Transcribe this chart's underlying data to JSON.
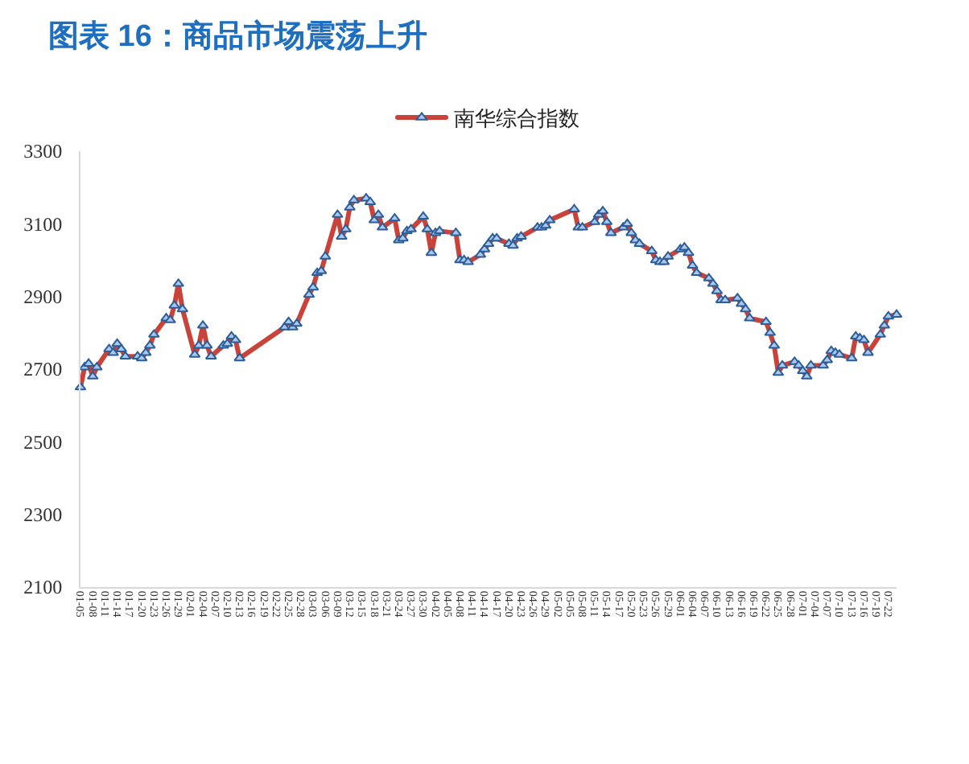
{
  "chart_data": {
    "type": "line",
    "title": "图表 16：商品市场震荡上升",
    "x": [
      "--01-05",
      "--01-06",
      "--01-07",
      "--01-08",
      "--01-09",
      "--01-12",
      "--01-13",
      "--01-14",
      "--01-15",
      "--01-16",
      "--01-19",
      "--01-20",
      "--01-21",
      "--01-22",
      "--01-23",
      "--01-26",
      "--01-27",
      "--01-28",
      "--01-29",
      "--01-30",
      "--02-02",
      "--02-03",
      "--02-04",
      "--02-05",
      "--02-06",
      "--02-09",
      "--02-10",
      "--02-11",
      "--02-12",
      "--02-13",
      "--02-24",
      "--02-25",
      "--02-26",
      "--02-27",
      "--03-02",
      "--03-03",
      "--03-04",
      "--03-05",
      "--03-06",
      "--03-09",
      "--03-10",
      "--03-11",
      "--03-12",
      "--03-13",
      "--03-16",
      "--03-17",
      "--03-18",
      "--03-19",
      "--03-20",
      "--03-23",
      "--03-24",
      "--03-25",
      "--03-26",
      "--03-27",
      "--03-30",
      "--03-31",
      "--04-01",
      "--04-02",
      "--04-03",
      "--04-07",
      "--04-08",
      "--04-09",
      "--04-10",
      "--04-13",
      "--04-14",
      "--04-15",
      "--04-16",
      "--04-17",
      "--04-20",
      "--04-21",
      "--04-22",
      "--04-23",
      "--04-27",
      "--04-28",
      "--04-29",
      "--04-30",
      "--05-06",
      "--05-07",
      "--05-08",
      "--05-11",
      "--05-12",
      "--05-13",
      "--05-14",
      "--05-15",
      "--05-18",
      "--05-19",
      "--05-20",
      "--05-21",
      "--05-22",
      "--05-25",
      "--05-26",
      "--05-27",
      "--05-28",
      "--05-29",
      "--06-01",
      "--06-02",
      "--06-03",
      "--06-04",
      "--06-05",
      "--06-08",
      "--06-09",
      "--06-10",
      "--06-11",
      "--06-12",
      "--06-15",
      "--06-16",
      "--06-17",
      "--06-18",
      "--06-22",
      "--06-23",
      "--06-24",
      "--06-25",
      "--06-26",
      "--06-29",
      "--06-30",
      "--07-01",
      "--07-02",
      "--07-03",
      "--07-06",
      "--07-07",
      "--07-08",
      "--07-09",
      "--07-10",
      "--07-13",
      "--07-14",
      "--07-15",
      "--07-16",
      "--07-17",
      "--07-20",
      "--07-21",
      "--07-22",
      "--07-24"
    ],
    "series": [
      {
        "name": "南华综合指数",
        "color": "#c9433a",
        "values": [
          2650,
          2705,
          2715,
          2680,
          2705,
          2755,
          2745,
          2770,
          2755,
          2735,
          2735,
          2730,
          2745,
          2765,
          2795,
          2840,
          2835,
          2875,
          2935,
          2865,
          2740,
          2765,
          2820,
          2765,
          2735,
          2765,
          2770,
          2790,
          2780,
          2730,
          2815,
          2830,
          2815,
          2825,
          2905,
          2925,
          2965,
          2970,
          3010,
          3125,
          3065,
          3085,
          3145,
          3165,
          3170,
          3160,
          3110,
          3125,
          3090,
          3115,
          3055,
          3060,
          3080,
          3085,
          3120,
          3085,
          3020,
          3075,
          3080,
          3075,
          3000,
          3000,
          2995,
          3015,
          3030,
          3045,
          3060,
          3060,
          3045,
          3040,
          3060,
          3065,
          3090,
          3090,
          3095,
          3110,
          3140,
          3090,
          3090,
          3105,
          3125,
          3135,
          3105,
          3075,
          3090,
          3100,
          3075,
          3055,
          3045,
          3025,
          3000,
          2995,
          2995,
          3010,
          3030,
          3035,
          3020,
          2985,
          2965,
          2950,
          2935,
          2915,
          2890,
          2890,
          2895,
          2880,
          2865,
          2840,
          2830,
          2800,
          2765,
          2690,
          2710,
          2720,
          2710,
          2695,
          2680,
          2710,
          2710,
          2725,
          2750,
          2745,
          2740,
          2730,
          2790,
          2785,
          2780,
          2745,
          2795,
          2820,
          2845,
          2850
        ]
      }
    ],
    "xlim": [
      "--01-05",
      "--07-24"
    ],
    "xticks": [
      {
        "value": "--01-05",
        "label": "01-05"
      },
      {
        "value": "--01-08",
        "label": "01-08"
      },
      {
        "value": "--01-11",
        "label": "01-11"
      },
      {
        "value": "--01-14",
        "label": "01-14"
      },
      {
        "value": "--01-17",
        "label": "01-17"
      },
      {
        "value": "--01-20",
        "label": "01-20"
      },
      {
        "value": "--01-23",
        "label": "01-23"
      },
      {
        "value": "--01-26",
        "label": "01-26"
      },
      {
        "value": "--01-29",
        "label": "01-29"
      },
      {
        "value": "--02-01",
        "label": "02-01"
      },
      {
        "value": "--02-04",
        "label": "02-04"
      },
      {
        "value": "--02-07",
        "label": "02-07"
      },
      {
        "value": "--02-10",
        "label": "02-10"
      },
      {
        "value": "--02-13",
        "label": "02-13"
      },
      {
        "value": "--02-16",
        "label": "02-16"
      },
      {
        "value": "--02-19",
        "label": "02-19"
      },
      {
        "value": "--02-22",
        "label": "02-22"
      },
      {
        "value": "--02-25",
        "label": "02-25"
      },
      {
        "value": "--02-28",
        "label": "02-28"
      },
      {
        "value": "--03-03",
        "label": "03-03"
      },
      {
        "value": "--03-06",
        "label": "03-06"
      },
      {
        "value": "--03-09",
        "label": "03-09"
      },
      {
        "value": "--03-12",
        "label": "03-12"
      },
      {
        "value": "--03-15",
        "label": "03-15"
      },
      {
        "value": "--03-18",
        "label": "03-18"
      },
      {
        "value": "--03-21",
        "label": "03-21"
      },
      {
        "value": "--03-24",
        "label": "03-24"
      },
      {
        "value": "--03-27",
        "label": "03-27"
      },
      {
        "value": "--03-30",
        "label": "03-30"
      },
      {
        "value": "--04-02",
        "label": "04-02"
      },
      {
        "value": "--04-05",
        "label": "04-05"
      },
      {
        "value": "--04-08",
        "label": "04-08"
      },
      {
        "value": "--04-11",
        "label": "04-11"
      },
      {
        "value": "--04-14",
        "label": "04-14"
      },
      {
        "value": "--04-17",
        "label": "04-17"
      },
      {
        "value": "--04-20",
        "label": "04-20"
      },
      {
        "value": "--04-23",
        "label": "04-23"
      },
      {
        "value": "--04-26",
        "label": "04-26"
      },
      {
        "value": "--04-29",
        "label": "04-29"
      },
      {
        "value": "--05-02",
        "label": "05-02"
      },
      {
        "value": "--05-05",
        "label": "05-05"
      },
      {
        "value": "--05-08",
        "label": "05-08"
      },
      {
        "value": "--05-11",
        "label": "05-11"
      },
      {
        "value": "--05-14",
        "label": "05-14"
      },
      {
        "value": "--05-17",
        "label": "05-17"
      },
      {
        "value": "--05-20",
        "label": "05-20"
      },
      {
        "value": "--05-23",
        "label": "05-23"
      },
      {
        "value": "--05-26",
        "label": "05-26"
      },
      {
        "value": "--05-29",
        "label": "05-29"
      },
      {
        "value": "--06-01",
        "label": "06-01"
      },
      {
        "value": "--06-04",
        "label": "06-04"
      },
      {
        "value": "--06-07",
        "label": "06-07"
      },
      {
        "value": "--06-10",
        "label": "06-10"
      },
      {
        "value": "--06-13",
        "label": "06-13"
      },
      {
        "value": "--06-16",
        "label": "06-16"
      },
      {
        "value": "--06-19",
        "label": "06-19"
      },
      {
        "value": "--06-22",
        "label": "06-22"
      },
      {
        "value": "--06-25",
        "label": "06-25"
      },
      {
        "value": "--06-28",
        "label": "06-28"
      },
      {
        "value": "--07-01",
        "label": "07-01"
      },
      {
        "value": "--07-04",
        "label": "07-04"
      },
      {
        "value": "--07-07",
        "label": "07-07"
      },
      {
        "value": "--07-10",
        "label": "07-10"
      },
      {
        "value": "--07-13",
        "label": "07-13"
      },
      {
        "value": "--07-16",
        "label": "07-16"
      },
      {
        "value": "--07-19",
        "label": "07-19"
      },
      {
        "value": "--07-22",
        "label": "07-22"
      }
    ],
    "ylim": [
      2100,
      3300
    ],
    "yticks": [
      2100,
      2300,
      2500,
      2700,
      2900,
      3100,
      3300
    ],
    "legend": "top",
    "marker": "triangle",
    "line_style": "solid"
  }
}
